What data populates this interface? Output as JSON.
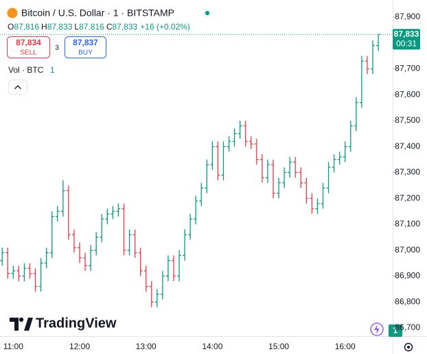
{
  "header": {
    "title": "Bitcoin / U.S. Dollar · 1 · BITSTAMP",
    "ohlc": [
      {
        "key": "O",
        "value": "87,816"
      },
      {
        "key": "H",
        "value": "87,833"
      },
      {
        "key": "L",
        "value": "87,816"
      },
      {
        "key": "C",
        "value": "87,833"
      }
    ],
    "change": "+16 (+0.02%)"
  },
  "trade": {
    "sell_price": "87,834",
    "sell": "SELL",
    "spread": "3",
    "buy_price": "87,837",
    "buy": "BUY"
  },
  "volume_legend": {
    "label": "Vol · BTC",
    "value": "1"
  },
  "price_tag": {
    "price": "87,833",
    "countdown": "00:31"
  },
  "logo": "TradingView",
  "badge": "1",
  "chart_data": {
    "type": "ohlc",
    "x": [
      "10:50",
      "10:55",
      "11:00",
      "11:05",
      "11:10",
      "11:15",
      "11:20",
      "11:25",
      "11:30",
      "11:35",
      "11:40",
      "11:45",
      "11:50",
      "11:55",
      "12:00",
      "12:05",
      "12:10",
      "12:15",
      "12:20",
      "12:25",
      "12:30",
      "12:35",
      "12:40",
      "12:45",
      "12:50",
      "12:55",
      "13:00",
      "13:05",
      "13:10",
      "13:15",
      "13:20",
      "13:25",
      "13:30",
      "13:35",
      "13:40",
      "13:45",
      "13:50",
      "13:55",
      "14:00",
      "14:05",
      "14:10",
      "14:15",
      "14:20",
      "14:25",
      "14:30",
      "14:35",
      "14:40",
      "14:45",
      "14:50",
      "14:55",
      "15:00",
      "15:05",
      "15:10",
      "15:15",
      "15:20",
      "15:25",
      "15:30",
      "15:35",
      "15:40",
      "15:45",
      "15:50",
      "15:55",
      "16:00",
      "16:05",
      "16:10",
      "16:15",
      "16:20",
      "16:25",
      "16:30"
    ],
    "open": [
      86960,
      86990,
      86910,
      86920,
      86900,
      86930,
      86910,
      86860,
      86950,
      86990,
      87130,
      87150,
      87230,
      87060,
      87010,
      86970,
      86940,
      87000,
      87050,
      87120,
      87140,
      87150,
      87160,
      87000,
      87060,
      86990,
      86920,
      86860,
      86800,
      86830,
      86900,
      86960,
      86900,
      86980,
      87060,
      87120,
      87190,
      87240,
      87330,
      87400,
      87290,
      87400,
      87420,
      87450,
      87480,
      87420,
      87410,
      87350,
      87280,
      87330,
      87220,
      87260,
      87300,
      87340,
      87300,
      87260,
      87200,
      87160,
      87180,
      87240,
      87320,
      87350,
      87360,
      87400,
      87480,
      87570,
      87730,
      87700,
      87790
    ],
    "high": [
      87010,
      87010,
      86940,
      86940,
      86950,
      86950,
      86930,
      86970,
      87010,
      87150,
      87170,
      87270,
      87250,
      87080,
      87030,
      86990,
      87020,
      87070,
      87140,
      87160,
      87170,
      87180,
      87180,
      87080,
      87080,
      87010,
      86940,
      86880,
      86850,
      86920,
      86980,
      86980,
      87000,
      87080,
      87140,
      87210,
      87260,
      87350,
      87420,
      87420,
      87420,
      87440,
      87470,
      87500,
      87500,
      87440,
      87430,
      87370,
      87350,
      87350,
      87280,
      87320,
      87360,
      87360,
      87320,
      87280,
      87220,
      87200,
      87260,
      87340,
      87370,
      87380,
      87420,
      87500,
      87590,
      87750,
      87750,
      87810,
      87833
    ],
    "low": [
      86940,
      86890,
      86890,
      86880,
      86880,
      86890,
      86840,
      86840,
      86930,
      86970,
      87110,
      87130,
      87040,
      86990,
      86950,
      86920,
      86920,
      86980,
      87030,
      87100,
      87120,
      87130,
      86980,
      86980,
      86970,
      86900,
      86840,
      86780,
      86780,
      86810,
      86880,
      86880,
      86880,
      86960,
      87040,
      87100,
      87170,
      87220,
      87310,
      87270,
      87270,
      87380,
      87400,
      87430,
      87400,
      87390,
      87330,
      87260,
      87260,
      87200,
      87200,
      87240,
      87280,
      87280,
      87240,
      87180,
      87140,
      87140,
      87160,
      87220,
      87300,
      87330,
      87340,
      87380,
      87460,
      87550,
      87680,
      87680,
      87770
    ],
    "close": [
      86990,
      86910,
      86920,
      86900,
      86930,
      86910,
      86860,
      86950,
      86990,
      87130,
      87150,
      87230,
      87060,
      87010,
      86970,
      86940,
      87000,
      87050,
      87120,
      87140,
      87150,
      87160,
      87000,
      87060,
      86990,
      86920,
      86860,
      86800,
      86830,
      86900,
      86960,
      86900,
      86980,
      87060,
      87120,
      87190,
      87240,
      87330,
      87400,
      87290,
      87400,
      87420,
      87450,
      87480,
      87420,
      87410,
      87350,
      87280,
      87330,
      87220,
      87260,
      87300,
      87340,
      87300,
      87260,
      87200,
      87160,
      87180,
      87240,
      87320,
      87350,
      87360,
      87400,
      87480,
      87570,
      87730,
      87700,
      87790,
      87833
    ],
    "up_color": "#089981",
    "down_color": "#f23645",
    "xlim": [
      "10:48",
      "16:43"
    ],
    "xticks": [
      "11:00",
      "12:00",
      "13:00",
      "14:00",
      "15:00",
      "16:00"
    ],
    "ylim": [
      86668,
      87966
    ],
    "yticks": [
      {
        "value": 86700,
        "label": "86,700"
      },
      {
        "value": 86800,
        "label": "86,800"
      },
      {
        "value": 86900,
        "label": "86,900"
      },
      {
        "value": 87000,
        "label": "87,000"
      },
      {
        "value": 87100,
        "label": "87,100"
      },
      {
        "value": 87200,
        "label": "87,200"
      },
      {
        "value": 87300,
        "label": "87,300"
      },
      {
        "value": 87400,
        "label": "87,400"
      },
      {
        "value": 87500,
        "label": "87,500"
      },
      {
        "value": 87600,
        "label": "87,600"
      },
      {
        "value": 87700,
        "label": "87,700"
      },
      {
        "value": 87800,
        "label": "87,800"
      },
      {
        "value": 87900,
        "label": "87,900"
      }
    ],
    "grid": false,
    "last_price": 87833
  }
}
